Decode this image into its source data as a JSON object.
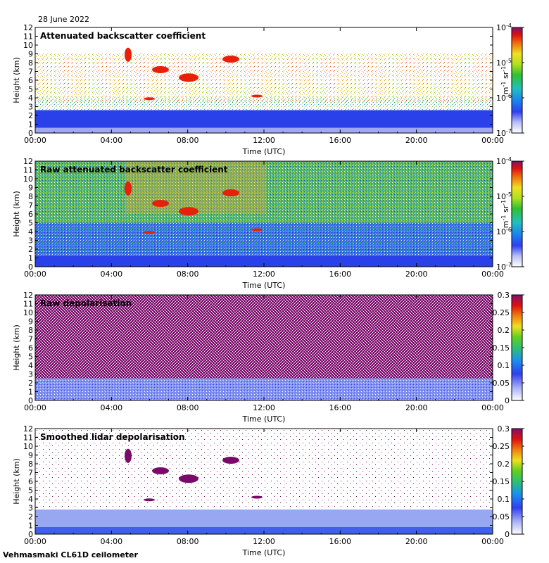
{
  "date_label": "28 June 2022",
  "footer_label": "Vehmasmaki CL61D ceilometer",
  "chart_data": [
    {
      "type": "heatmap",
      "title": "Attenuated backscatter coefficient",
      "xlabel": "Time (UTC)",
      "ylabel": "Height (km)",
      "xticks": [
        "00:00",
        "04:00",
        "08:00",
        "12:00",
        "16:00",
        "20:00",
        "00:00"
      ],
      "yticks": [
        "0",
        "1",
        "2",
        "3",
        "4",
        "5",
        "6",
        "7",
        "8",
        "9",
        "10",
        "11",
        "12"
      ],
      "ylim": [
        0,
        12
      ],
      "colorbar": {
        "scale": "log",
        "range": [
          1e-07,
          0.0001
        ],
        "unit_base": "m",
        "unit_exp1": "-1",
        "unit_mid": " sr",
        "unit_exp2": "-1",
        "tick_labels": [
          {
            "base": "10",
            "exp": "-4"
          },
          {
            "base": "10",
            "exp": "-5"
          },
          {
            "base": "10",
            "exp": "-6"
          },
          {
            "base": "10",
            "exp": "-7"
          }
        ]
      }
    },
    {
      "type": "heatmap",
      "title": "Raw attenuated backscatter coefficient",
      "xlabel": "Time (UTC)",
      "ylabel": "Height (km)",
      "xticks": [
        "00:00",
        "04:00",
        "08:00",
        "12:00",
        "16:00",
        "20:00",
        "00:00"
      ],
      "yticks": [
        "0",
        "1",
        "2",
        "3",
        "4",
        "5",
        "6",
        "7",
        "8",
        "9",
        "10",
        "11",
        "12"
      ],
      "ylim": [
        0,
        12
      ],
      "colorbar": {
        "scale": "log",
        "range": [
          1e-07,
          0.0001
        ],
        "unit_base": "m",
        "unit_exp1": "-1",
        "unit_mid": " sr",
        "unit_exp2": "-1",
        "tick_labels": [
          {
            "base": "10",
            "exp": "-4"
          },
          {
            "base": "10",
            "exp": "-5"
          },
          {
            "base": "10",
            "exp": "-6"
          },
          {
            "base": "10",
            "exp": "-7"
          }
        ]
      }
    },
    {
      "type": "heatmap",
      "title": "Raw depolarisation",
      "xlabel": "Time (UTC)",
      "ylabel": "Height (km)",
      "xticks": [
        "00:00",
        "04:00",
        "08:00",
        "12:00",
        "16:00",
        "20:00",
        "00:00"
      ],
      "yticks": [
        "0",
        "1",
        "2",
        "3",
        "4",
        "5",
        "6",
        "7",
        "8",
        "9",
        "10",
        "11",
        "12"
      ],
      "ylim": [
        0,
        12
      ],
      "colorbar": {
        "scale": "linear",
        "range": [
          0,
          0.3
        ],
        "tick_labels": [
          "0.3",
          "0.25",
          "0.2",
          "0.15",
          "0.1",
          "0.05",
          "0"
        ]
      }
    },
    {
      "type": "heatmap",
      "title": "Smoothed lidar depolarisation",
      "xlabel": "Time (UTC)",
      "ylabel": "Height (km)",
      "xticks": [
        "00:00",
        "04:00",
        "08:00",
        "12:00",
        "16:00",
        "20:00",
        "00:00"
      ],
      "yticks": [
        "0",
        "1",
        "2",
        "3",
        "4",
        "5",
        "6",
        "7",
        "8",
        "9",
        "10",
        "11",
        "12"
      ],
      "ylim": [
        0,
        12
      ],
      "colorbar": {
        "scale": "linear",
        "range": [
          0,
          0.3
        ],
        "tick_labels": [
          "0.3",
          "0.25",
          "0.2",
          "0.15",
          "0.1",
          "0.05",
          "0"
        ]
      }
    }
  ],
  "colors": {
    "background": "#ffffff",
    "cloud_red": "#e8200a",
    "depol_purple": "#7a0a6a",
    "boundary_blue": "#1a30e0",
    "green": "#33c040"
  }
}
